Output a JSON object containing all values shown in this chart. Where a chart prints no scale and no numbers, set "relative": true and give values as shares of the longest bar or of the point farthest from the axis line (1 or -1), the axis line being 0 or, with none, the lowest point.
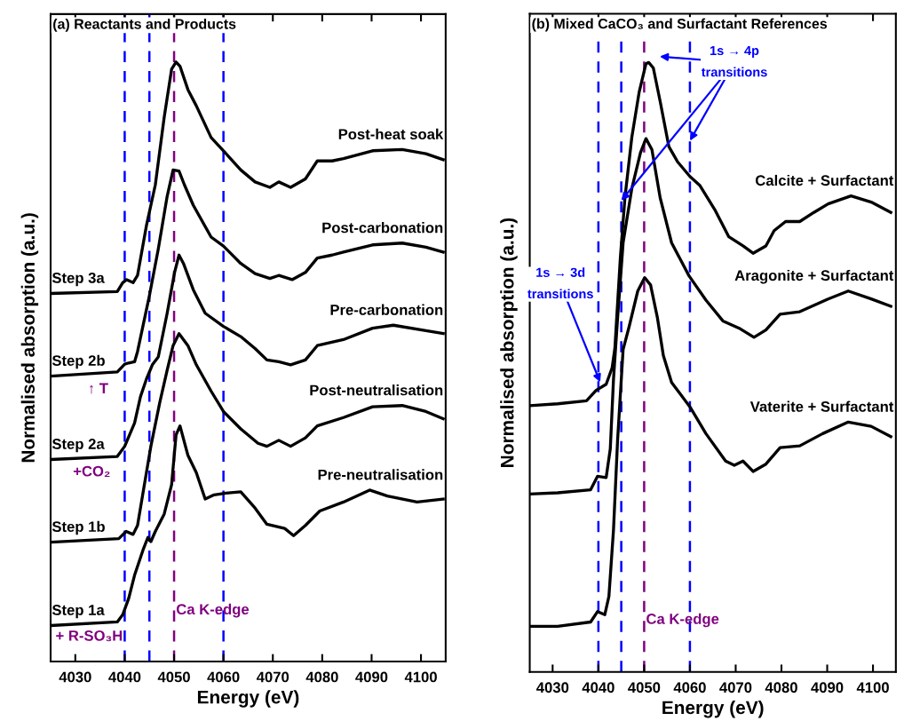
{
  "chart_data": [
    {
      "type": "line",
      "title": "(a) Reactants and Products",
      "xlabel": "Energy (eV)",
      "ylabel": "Normalised absorption (a.u.)",
      "relative": true,
      "xlim": [
        4025,
        4105
      ],
      "xticks": [
        4030,
        4040,
        4050,
        4060,
        4070,
        4080,
        4090,
        4100
      ],
      "grid": false,
      "legend": false,
      "marker": "none",
      "line_style": "solid",
      "series": [
        {
          "name": "Post-heat soak",
          "color": "#000000",
          "x": [
            4025,
            4038.5,
            4039.6,
            4040.4,
            4041.7,
            4042.6,
            4044.4,
            4046.2,
            4048,
            4049.5,
            4050.4,
            4051.2,
            4052.8,
            4054.5,
            4057.5,
            4060,
            4063.5,
            4066.4,
            4069.4,
            4071.2,
            4073.6,
            4076.6,
            4079,
            4082,
            4084.3,
            4090.2,
            4096.2,
            4101,
            4104.5
          ],
          "values": [
            0.614,
            0.617,
            0.632,
            0.637,
            0.632,
            0.644,
            0.727,
            0.795,
            0.908,
            0.988,
            1.0,
            0.993,
            0.954,
            0.927,
            0.874,
            0.852,
            0.82,
            0.8,
            0.791,
            0.8,
            0.791,
            0.805,
            0.835,
            0.835,
            0.839,
            0.852,
            0.854,
            0.847,
            0.837
          ]
        },
        {
          "name": "Post-carbonation",
          "color": "#000000",
          "x": [
            4025,
            4038.5,
            4040,
            4040.8,
            4042,
            4042.6,
            4045,
            4046.8,
            4048.6,
            4049.8,
            4051,
            4052.1,
            4053.9,
            4057.5,
            4060,
            4063.5,
            4066.4,
            4069.4,
            4071.2,
            4073.9,
            4076.6,
            4079,
            4082,
            4084.3,
            4090.2,
            4096.2,
            4101,
            4104.5
          ],
          "values": [
            0.476,
            0.483,
            0.496,
            0.498,
            0.5,
            0.517,
            0.61,
            0.688,
            0.776,
            0.82,
            0.818,
            0.795,
            0.761,
            0.708,
            0.693,
            0.664,
            0.647,
            0.639,
            0.644,
            0.637,
            0.649,
            0.673,
            0.678,
            0.683,
            0.695,
            0.698,
            0.691,
            0.683
          ]
        },
        {
          "name": "Pre-carbonation",
          "color": "#000000",
          "x": [
            4025,
            4038.5,
            4040,
            4042,
            4043.2,
            4044.4,
            4045.6,
            4046.8,
            4048.6,
            4050.1,
            4051,
            4051.9,
            4053.9,
            4056.3,
            4060,
            4063.5,
            4066.4,
            4068.8,
            4071.2,
            4073.6,
            4076.6,
            4079,
            4084.3,
            4090.2,
            4094.4,
            4101,
            4104.5
          ],
          "values": [
            0.337,
            0.342,
            0.359,
            0.398,
            0.442,
            0.471,
            0.495,
            0.508,
            0.581,
            0.649,
            0.678,
            0.664,
            0.62,
            0.581,
            0.559,
            0.542,
            0.522,
            0.503,
            0.5,
            0.495,
            0.503,
            0.527,
            0.537,
            0.556,
            0.561,
            0.552,
            0.547
          ]
        },
        {
          "name": "Post-neutralisation",
          "color": "#000000",
          "x": [
            4025,
            4038.8,
            4040.3,
            4041.7,
            4042.6,
            4043.8,
            4045.3,
            4047.1,
            4048.6,
            4049.8,
            4051,
            4052.8,
            4054.5,
            4057.5,
            4060,
            4063.5,
            4067,
            4068.8,
            4071.2,
            4073.6,
            4076.6,
            4079,
            4084.3,
            4090.2,
            4096.2,
            4101,
            4104.5
          ],
          "values": [
            0.199,
            0.205,
            0.217,
            0.212,
            0.227,
            0.286,
            0.359,
            0.432,
            0.486,
            0.527,
            0.547,
            0.527,
            0.495,
            0.451,
            0.417,
            0.388,
            0.364,
            0.359,
            0.369,
            0.359,
            0.373,
            0.393,
            0.407,
            0.425,
            0.427,
            0.417,
            0.405
          ]
        },
        {
          "name": "Pre-neutralisation",
          "color": "#000000",
          "x": [
            4025,
            4038.5,
            4039.6,
            4040.8,
            4042,
            4043.8,
            4044.7,
            4045.3,
            4046.2,
            4048,
            4049.5,
            4050.4,
            4051.2,
            4052.8,
            4054.5,
            4056.3,
            4058.1,
            4060.5,
            4063.5,
            4066.4,
            4068.8,
            4072.4,
            4074.2,
            4076.6,
            4079.5,
            4084.3,
            4089.6,
            4093.2,
            4099.2,
            4104.5
          ],
          "values": [
            0.06,
            0.066,
            0.078,
            0.105,
            0.144,
            0.188,
            0.207,
            0.2,
            0.217,
            0.246,
            0.295,
            0.378,
            0.393,
            0.344,
            0.315,
            0.271,
            0.278,
            0.281,
            0.283,
            0.256,
            0.229,
            0.222,
            0.21,
            0.227,
            0.251,
            0.266,
            0.286,
            0.276,
            0.266,
            0.271
          ]
        }
      ],
      "ref_lines": [
        {
          "axis": "x",
          "value": 4040,
          "color": "#0000ff",
          "line_style": "dashed"
        },
        {
          "axis": "x",
          "value": 4045,
          "color": "#0000ff",
          "line_style": "dashed"
        },
        {
          "axis": "x",
          "value": 4050,
          "label": "Ca K-edge",
          "color": "#800080",
          "line_style": "dashed"
        },
        {
          "axis": "x",
          "value": 4060,
          "color": "#0000ff",
          "line_style": "dashed"
        }
      ],
      "annotations": [
        "Step 3a",
        "Step 2b",
        "Step 2a",
        "Step 1b",
        "Step 1a",
        "↑ T",
        "+CO₂",
        "+ R-SO₃H"
      ]
    },
    {
      "type": "line",
      "title": "(b) Mixed CaCO₃ and Surfactant References",
      "xlabel": "Energy (eV)",
      "ylabel": "Normalised absorption (a.u.)",
      "relative": true,
      "xlim": [
        4025,
        4105
      ],
      "xticks": [
        4030,
        4040,
        4050,
        4060,
        4070,
        4080,
        4090,
        4100
      ],
      "grid": false,
      "legend": false,
      "marker": "none",
      "line_style": "solid",
      "series": [
        {
          "name": "Calcite + Surfactant",
          "color": "#000000",
          "x": [
            4025,
            4031.1,
            4037.4,
            4039.5,
            4041.7,
            4043,
            4043.6,
            4044.8,
            4045.8,
            4047.3,
            4048.9,
            4050.4,
            4051,
            4052,
            4053.5,
            4055.4,
            4057.3,
            4060,
            4062.2,
            4065.4,
            4068.5,
            4071.6,
            4073.8,
            4076.6,
            4078.4,
            4080.9,
            4084,
            4087.1,
            4090.2,
            4095.2,
            4099.6,
            4103.9
          ],
          "values": [
            0.437,
            0.44,
            0.445,
            0.462,
            0.472,
            0.499,
            0.531,
            0.68,
            0.778,
            0.877,
            0.951,
            0.998,
            1.0,
            0.991,
            0.936,
            0.862,
            0.837,
            0.813,
            0.798,
            0.759,
            0.714,
            0.699,
            0.687,
            0.699,
            0.724,
            0.739,
            0.739,
            0.754,
            0.768,
            0.781,
            0.771,
            0.754
          ]
        },
        {
          "name": "Aragonite + Surfactant",
          "color": "#000000",
          "x": [
            4025,
            4031.1,
            4038.3,
            4039.8,
            4041.7,
            4042.6,
            4043.3,
            4044.2,
            4045.4,
            4047.3,
            4049.2,
            4050.4,
            4051.7,
            4053.5,
            4056,
            4059.8,
            4063.5,
            4067.2,
            4071,
            4074,
            4076.6,
            4079.7,
            4084,
            4090.2,
            4094.6,
            4099.6,
            4103.9
          ],
          "values": [
            0.292,
            0.294,
            0.299,
            0.321,
            0.319,
            0.366,
            0.48,
            0.581,
            0.704,
            0.793,
            0.852,
            0.875,
            0.857,
            0.778,
            0.704,
            0.65,
            0.61,
            0.576,
            0.563,
            0.549,
            0.561,
            0.587,
            0.591,
            0.612,
            0.625,
            0.612,
            0.6
          ]
        },
        {
          "name": "Vaterite + Surfactant",
          "color": "#000000",
          "x": [
            4025,
            4031.1,
            4038.3,
            4039.8,
            4041.4,
            4042.3,
            4043.3,
            4044.2,
            4045.4,
            4046.7,
            4048.6,
            4050.1,
            4051.4,
            4052.9,
            4054.2,
            4056,
            4060,
            4063.5,
            4067.8,
            4069.7,
            4071.6,
            4073.8,
            4076.6,
            4079.7,
            4084,
            4089,
            4094.6,
            4099.6,
            4103.9
          ],
          "values": [
            0.075,
            0.075,
            0.082,
            0.099,
            0.094,
            0.124,
            0.233,
            0.381,
            0.529,
            0.566,
            0.625,
            0.647,
            0.635,
            0.581,
            0.519,
            0.475,
            0.435,
            0.391,
            0.346,
            0.339,
            0.346,
            0.329,
            0.341,
            0.368,
            0.371,
            0.391,
            0.41,
            0.403,
            0.386
          ]
        }
      ],
      "ref_lines": [
        {
          "axis": "x",
          "value": 4040,
          "color": "#0000ff",
          "line_style": "dashed"
        },
        {
          "axis": "x",
          "value": 4045,
          "color": "#0000ff",
          "line_style": "dashed"
        },
        {
          "axis": "x",
          "value": 4050,
          "label": "Ca K-edge",
          "color": "#800080",
          "line_style": "dashed"
        },
        {
          "axis": "x",
          "value": 4060,
          "color": "#0000ff",
          "line_style": "dashed"
        }
      ],
      "annotations": [
        "1s → 4p\ntransitions",
        "1s → 3d\ntransitions"
      ]
    }
  ]
}
